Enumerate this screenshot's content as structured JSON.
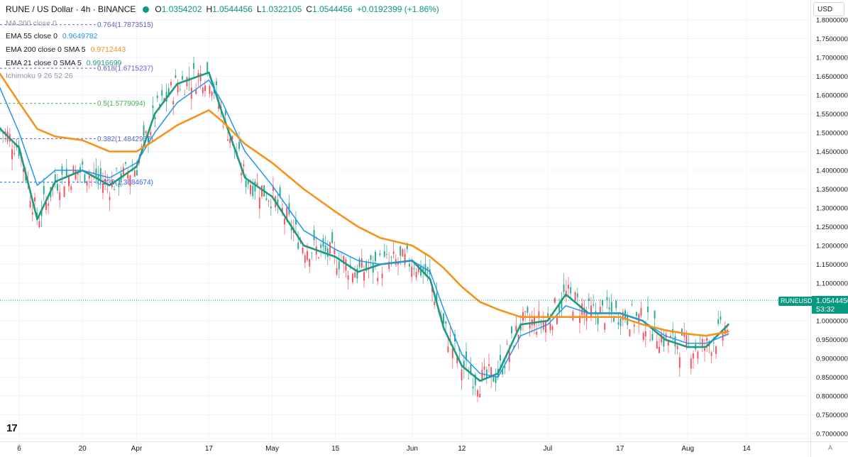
{
  "header": {
    "symbol": "RUNE / US Dollar · 4h · BINANCE",
    "o_label": "O",
    "o": "1.0354202",
    "h_label": "H",
    "h": "1.0544456",
    "l_label": "L",
    "l": "1.0322105",
    "c_label": "C",
    "c": "1.0544456",
    "change": "+0.0192399 (+1.86%)"
  },
  "currency": "USD",
  "legend": [
    {
      "label": "MA 200 close 0",
      "value": "",
      "color": "#9598a1"
    },
    {
      "label": "EMA 55 close 0",
      "value": "0.9649782",
      "color": "#2196f3"
    },
    {
      "label": "EMA 200 close 0 SMA 5",
      "value": "0.9712443",
      "color": "#f7931a"
    },
    {
      "label": "EMA 21 close 0 SMA 5",
      "value": "0.9916699",
      "color": "#1e9b7e"
    },
    {
      "label": "Ichimoku 9 26 52 26",
      "value": "",
      "color": "#9598a1"
    }
  ],
  "price_tag": {
    "symbol": "RUNEUSD",
    "price": "1.0544456",
    "countdown": "53:32"
  },
  "colors": {
    "up": "#089981",
    "down": "#f23645",
    "ema21": "#1e9b7e",
    "ema55": "#2196f3",
    "ema200": "#f7931a",
    "fib": "#5b5fc7"
  },
  "chart_data": {
    "type": "line",
    "ylim": [
      0.7,
      1.8
    ],
    "y_ticks": [
      "1.8000000",
      "1.7500000",
      "1.7000000",
      "1.6500000",
      "1.6000000",
      "1.5500000",
      "1.5000000",
      "1.4500000",
      "1.4000000",
      "1.3500000",
      "1.3000000",
      "1.2500000",
      "1.2000000",
      "1.1500000",
      "1.1000000",
      "1.0500000",
      "1.0000000",
      "0.9500000",
      "0.9000000",
      "0.8500000",
      "0.8000000",
      "0.7500000",
      "0.7000000"
    ],
    "x_ticks": [
      "6",
      "20",
      "Apr",
      "17",
      "May",
      "15",
      "Jun",
      "12",
      "Jul",
      "17",
      "Aug",
      "14"
    ],
    "fib_levels": [
      {
        "label": "0.764(1.7873515)",
        "value": 1.7873515,
        "color": "#5b5fc7"
      },
      {
        "label": "0.618(1.6715237)",
        "value": 1.6715237,
        "color": "#5b5fc7"
      },
      {
        "label": "0.5(1.5779094)",
        "value": 1.5779094,
        "color": "#4caf50"
      },
      {
        "label": "0.382(1.4842952)",
        "value": 1.4842952,
        "color": "#5b5fc7"
      },
      {
        "label": "0.236(1.3684674)",
        "value": 1.3684674,
        "color": "#2962ff"
      }
    ],
    "series": [
      {
        "name": "EMA 21 close 0 SMA 5",
        "color": "#1e9b7e",
        "x": [
          "Mar 1",
          "Mar 6",
          "Mar 10",
          "Mar 14",
          "Mar 20",
          "Mar 26",
          "Apr 1",
          "Apr 5",
          "Apr 10",
          "Apr 17",
          "Apr 20",
          "Apr 25",
          "May 1",
          "May 8",
          "May 15",
          "May 20",
          "May 25",
          "Jun 1",
          "Jun 5",
          "Jun 8",
          "Jun 12",
          "Jun 16",
          "Jun 20",
          "Jun 25",
          "Jul 1",
          "Jul 5",
          "Jul 10",
          "Jul 17",
          "Jul 22",
          "Jul 27",
          "Aug 1",
          "Aug 5",
          "Aug 10"
        ],
        "values": [
          1.52,
          1.46,
          1.27,
          1.37,
          1.4,
          1.36,
          1.41,
          1.55,
          1.63,
          1.66,
          1.55,
          1.38,
          1.33,
          1.2,
          1.17,
          1.13,
          1.15,
          1.16,
          1.11,
          0.98,
          0.88,
          0.84,
          0.86,
          0.99,
          1.0,
          1.07,
          1.02,
          1.02,
          1.0,
          0.95,
          0.93,
          0.93,
          0.99
        ]
      },
      {
        "name": "EMA 55 close 0",
        "color": "#2196f3",
        "x": [
          "Mar 1",
          "Mar 6",
          "Mar 10",
          "Mar 14",
          "Mar 20",
          "Mar 26",
          "Apr 1",
          "Apr 5",
          "Apr 10",
          "Apr 17",
          "Apr 20",
          "Apr 25",
          "May 1",
          "May 8",
          "May 15",
          "May 20",
          "May 25",
          "Jun 1",
          "Jun 5",
          "Jun 8",
          "Jun 12",
          "Jun 16",
          "Jun 20",
          "Jun 25",
          "Jul 1",
          "Jul 5",
          "Jul 10",
          "Jul 17",
          "Jul 22",
          "Jul 27",
          "Aug 1",
          "Aug 5",
          "Aug 10"
        ],
        "values": [
          1.64,
          1.5,
          1.36,
          1.4,
          1.4,
          1.38,
          1.42,
          1.5,
          1.58,
          1.64,
          1.58,
          1.45,
          1.36,
          1.24,
          1.19,
          1.16,
          1.15,
          1.16,
          1.13,
          1.03,
          0.91,
          0.86,
          0.85,
          0.96,
          0.99,
          1.04,
          1.02,
          1.02,
          1.0,
          0.96,
          0.94,
          0.94,
          0.965
        ]
      },
      {
        "name": "EMA 200 close 0 SMA 5",
        "color": "#f7931a",
        "x": [
          "Mar 1",
          "Mar 6",
          "Mar 10",
          "Mar 14",
          "Mar 20",
          "Mar 26",
          "Apr 1",
          "Apr 5",
          "Apr 10",
          "Apr 17",
          "Apr 20",
          "Apr 25",
          "May 1",
          "May 8",
          "May 15",
          "May 20",
          "May 25",
          "Jun 1",
          "Jun 5",
          "Jun 8",
          "Jun 12",
          "Jun 16",
          "Jun 20",
          "Jun 25",
          "Jul 1",
          "Jul 5",
          "Jul 10",
          "Jul 17",
          "Jul 22",
          "Jul 27",
          "Aug 1",
          "Aug 5",
          "Aug 10"
        ],
        "values": [
          1.67,
          1.58,
          1.51,
          1.49,
          1.48,
          1.45,
          1.45,
          1.48,
          1.52,
          1.56,
          1.53,
          1.47,
          1.42,
          1.35,
          1.29,
          1.25,
          1.22,
          1.2,
          1.17,
          1.14,
          1.09,
          1.05,
          1.03,
          1.01,
          1.01,
          1.01,
          1.01,
          1.01,
          0.99,
          0.975,
          0.965,
          0.96,
          0.971
        ]
      }
    ]
  }
}
